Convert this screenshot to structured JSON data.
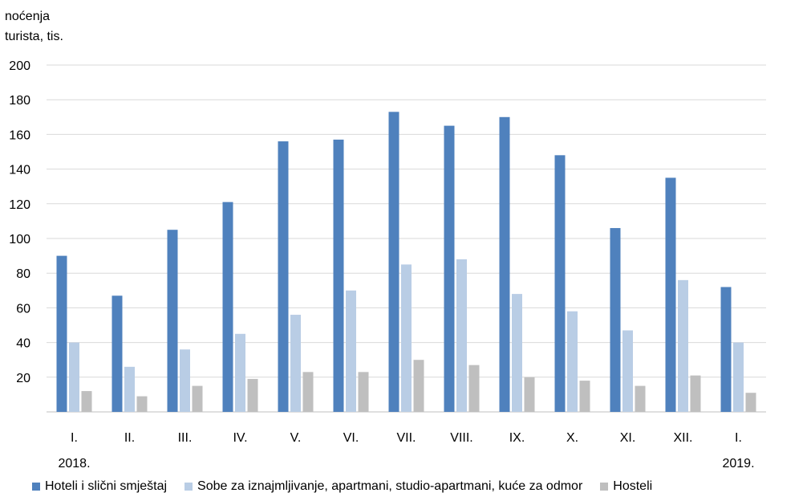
{
  "chart_data": {
    "type": "bar",
    "ylabel": [
      "noćenja",
      "turista, tis."
    ],
    "ylim": [
      0,
      200
    ],
    "yticks": [
      20,
      40,
      60,
      80,
      100,
      120,
      140,
      160,
      180,
      200
    ],
    "grid": true,
    "legend_position": "bottom",
    "categories": [
      "I.",
      "II.",
      "III.",
      "IV.",
      "V.",
      "VI.",
      "VII.",
      "VIII.",
      "IX.",
      "X.",
      "XI.",
      "XII.",
      "I."
    ],
    "year_labels": [
      {
        "category_index": 0,
        "label": "2018."
      },
      {
        "category_index": 12,
        "label": "2019."
      }
    ],
    "series": [
      {
        "name": "Hoteli i slični smještaj",
        "color": "#4f81bd",
        "values": [
          90,
          67,
          105,
          121,
          156,
          157,
          173,
          165,
          170,
          148,
          106,
          135,
          72
        ]
      },
      {
        "name": "Sobe za iznajmljivanje, apartmani, studio-apartmani, kuće za odmor",
        "color": "#b9cde5",
        "values": [
          40,
          26,
          36,
          45,
          56,
          70,
          85,
          88,
          68,
          58,
          47,
          76,
          40
        ]
      },
      {
        "name": "Hosteli",
        "color": "#bfbfbf",
        "values": [
          12,
          9,
          15,
          19,
          23,
          23,
          30,
          27,
          20,
          18,
          15,
          21,
          11
        ]
      }
    ]
  }
}
